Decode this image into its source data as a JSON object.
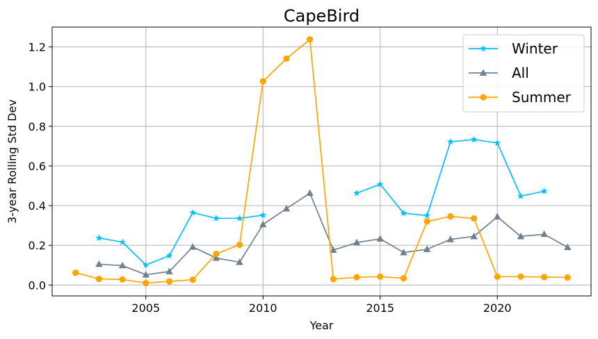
{
  "chart_data": {
    "type": "line",
    "title": "CapeBird",
    "xlabel": "Year",
    "ylabel": "3-year Rolling Std Dev",
    "xlim": [
      2001,
      2024
    ],
    "ylim": [
      -0.055,
      1.3
    ],
    "xticks": [
      2005,
      2010,
      2015,
      2020
    ],
    "yticks": [
      0.0,
      0.2,
      0.4,
      0.6,
      0.8,
      1.0,
      1.2
    ],
    "ytick_labels": [
      "0.0",
      "0.2",
      "0.4",
      "0.6",
      "0.8",
      "1.0",
      "1.2"
    ],
    "grid": true,
    "legend_position": "top-right",
    "series": [
      {
        "name": "Winter",
        "color": "#00bfff",
        "marker": "star",
        "x": [
          2003,
          2004,
          2005,
          2006,
          2007,
          2008,
          2009,
          2010,
          2014,
          2015,
          2016,
          2017,
          2018,
          2019,
          2020,
          2021,
          2022
        ],
        "y": [
          0.237,
          0.216,
          0.101,
          0.148,
          0.365,
          0.336,
          0.336,
          0.352,
          0.463,
          0.508,
          0.362,
          0.35,
          0.722,
          0.733,
          0.716,
          0.448,
          0.473
        ],
        "breaks_after": [
          2010
        ]
      },
      {
        "name": "All",
        "color": "#708090",
        "marker": "triangle",
        "x": [
          2003,
          2004,
          2005,
          2006,
          2007,
          2008,
          2009,
          2010,
          2011,
          2012,
          2013,
          2014,
          2015,
          2016,
          2017,
          2018,
          2019,
          2020,
          2021,
          2022,
          2023
        ],
        "y": [
          0.105,
          0.098,
          0.052,
          0.068,
          0.192,
          0.136,
          0.115,
          0.305,
          0.385,
          0.463,
          0.176,
          0.214,
          0.233,
          0.164,
          0.18,
          0.23,
          0.245,
          0.344,
          0.245,
          0.256,
          0.19
        ],
        "breaks_after": []
      },
      {
        "name": "Summer",
        "color": "#ffa500",
        "marker": "circle",
        "x": [
          2002,
          2003,
          2004,
          2005,
          2006,
          2007,
          2008,
          2009,
          2010,
          2011,
          2012,
          2013,
          2014,
          2015,
          2016,
          2017,
          2018,
          2019,
          2020,
          2021,
          2022,
          2023
        ],
        "y": [
          0.062,
          0.031,
          0.028,
          0.01,
          0.018,
          0.027,
          0.157,
          0.203,
          1.027,
          1.141,
          1.238,
          0.03,
          0.039,
          0.042,
          0.034,
          0.32,
          0.346,
          0.336,
          0.042,
          0.042,
          0.04,
          0.038
        ],
        "breaks_after": []
      }
    ]
  }
}
